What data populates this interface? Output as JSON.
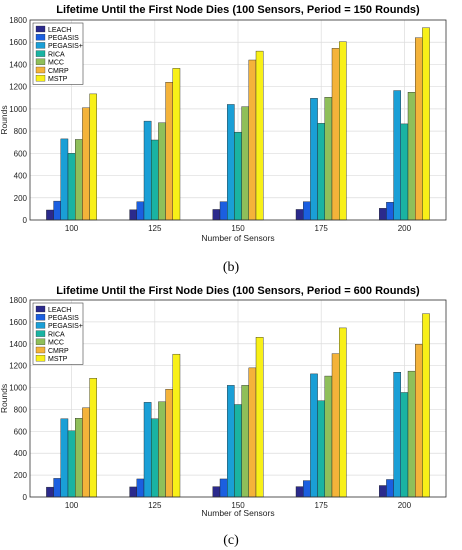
{
  "chart_data": [
    {
      "type": "bar",
      "title": "Lifetime Until the First Node Dies (100 Sensors, Period = 150 Rounds)",
      "xlabel": "Number of Sensors",
      "ylabel": "Rounds",
      "caption": "(b)",
      "categories": [
        "100",
        "125",
        "150",
        "175",
        "200"
      ],
      "ylim": [
        0,
        1800
      ],
      "yticks": [
        "0",
        "200",
        "400",
        "600",
        "800",
        "1000",
        "1200",
        "1400",
        "1600",
        "1800"
      ],
      "grid": true,
      "legend_position": "top-left",
      "series": [
        {
          "name": "LEACH",
          "color": "#2b2a8c",
          "values": [
            90,
            92,
            95,
            95,
            105
          ]
        },
        {
          "name": "PEGASIS",
          "color": "#1b5fe0",
          "values": [
            170,
            165,
            165,
            165,
            160
          ]
        },
        {
          "name": "PEGASIS+",
          "color": "#1a9fd6",
          "values": [
            730,
            890,
            1040,
            1095,
            1165
          ]
        },
        {
          "name": "RICA",
          "color": "#1ab3a2",
          "values": [
            600,
            720,
            790,
            870,
            865
          ]
        },
        {
          "name": "MCC",
          "color": "#8fbf5a",
          "values": [
            725,
            875,
            1020,
            1105,
            1150
          ]
        },
        {
          "name": "CMRP",
          "color": "#f4b33a",
          "values": [
            1010,
            1240,
            1440,
            1545,
            1640
          ]
        },
        {
          "name": "MSTP",
          "color": "#f8f018",
          "values": [
            1135,
            1365,
            1520,
            1605,
            1730
          ]
        }
      ]
    },
    {
      "type": "bar",
      "title": "Lifetime Until the First Node Dies (100 Sensors, Period = 600 Rounds)",
      "xlabel": "Number of Sensors",
      "ylabel": "Rounds",
      "caption": "(c)",
      "categories": [
        "100",
        "125",
        "150",
        "175",
        "200"
      ],
      "ylim": [
        0,
        1800
      ],
      "yticks": [
        "0",
        "200",
        "400",
        "600",
        "800",
        "1000",
        "1200",
        "1400",
        "1600",
        "1800"
      ],
      "grid": true,
      "legend_position": "top-left",
      "series": [
        {
          "name": "LEACH",
          "color": "#2b2a8c",
          "values": [
            90,
            92,
            95,
            95,
            105
          ]
        },
        {
          "name": "PEGASIS",
          "color": "#1b5fe0",
          "values": [
            170,
            165,
            165,
            150,
            160
          ]
        },
        {
          "name": "PEGASIS+",
          "color": "#1a9fd6",
          "values": [
            715,
            865,
            1020,
            1125,
            1140
          ]
        },
        {
          "name": "RICA",
          "color": "#1ab3a2",
          "values": [
            605,
            715,
            845,
            880,
            955
          ]
        },
        {
          "name": "MCC",
          "color": "#8fbf5a",
          "values": [
            720,
            870,
            1020,
            1105,
            1150
          ]
        },
        {
          "name": "CMRP",
          "color": "#f4b33a",
          "values": [
            815,
            985,
            1180,
            1310,
            1395
          ]
        },
        {
          "name": "MSTP",
          "color": "#f8f018",
          "values": [
            1085,
            1305,
            1460,
            1545,
            1675
          ]
        }
      ]
    }
  ]
}
